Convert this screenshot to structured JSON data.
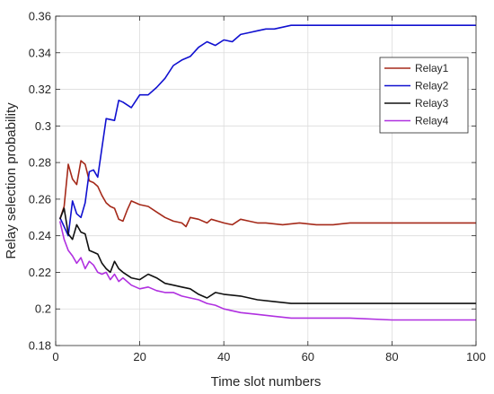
{
  "chart_data": {
    "type": "line",
    "title": "",
    "xlabel": "Time slot numbers",
    "ylabel": "Relay selection probability",
    "xlim": [
      0,
      100
    ],
    "ylim": [
      0.18,
      0.36
    ],
    "xticks": [
      0,
      20,
      40,
      60,
      80,
      100
    ],
    "xtick_labels": [
      "0",
      "20",
      "40",
      "60",
      "80",
      "100"
    ],
    "yticks": [
      0.18,
      0.2,
      0.22,
      0.24,
      0.26,
      0.28,
      0.3,
      0.32,
      0.34,
      0.36
    ],
    "ytick_labels": [
      "0.18",
      "0.2",
      "0.22",
      "0.24",
      "0.26",
      "0.28",
      "0.3",
      "0.32",
      "0.34",
      "0.36"
    ],
    "grid": true,
    "legend_position": "top-right",
    "series": [
      {
        "name": "Relay1",
        "color": "#a52a1a",
        "x": [
          1,
          2,
          3,
          4,
          5,
          6,
          7,
          8,
          9,
          10,
          11,
          12,
          13,
          14,
          15,
          16,
          17,
          18,
          20,
          22,
          24,
          26,
          28,
          30,
          31,
          32,
          34,
          36,
          37,
          40,
          42,
          44,
          46,
          48,
          50,
          54,
          58,
          62,
          66,
          70,
          80,
          90,
          100
        ],
        "y": [
          0.249,
          0.256,
          0.279,
          0.271,
          0.268,
          0.281,
          0.279,
          0.27,
          0.269,
          0.267,
          0.262,
          0.258,
          0.256,
          0.255,
          0.249,
          0.248,
          0.254,
          0.259,
          0.257,
          0.256,
          0.253,
          0.25,
          0.248,
          0.247,
          0.245,
          0.25,
          0.249,
          0.247,
          0.249,
          0.247,
          0.246,
          0.249,
          0.248,
          0.247,
          0.247,
          0.246,
          0.247,
          0.246,
          0.246,
          0.247,
          0.247,
          0.247,
          0.247
        ]
      },
      {
        "name": "Relay2",
        "color": "#1010d0",
        "x": [
          1,
          2,
          3,
          4,
          5,
          6,
          7,
          8,
          9,
          10,
          11,
          12,
          14,
          15,
          16,
          18,
          20,
          22,
          24,
          26,
          28,
          30,
          32,
          34,
          36,
          38,
          40,
          42,
          44,
          46,
          48,
          50,
          52,
          56,
          60,
          70,
          80,
          90,
          100
        ],
        "y": [
          0.25,
          0.245,
          0.24,
          0.259,
          0.252,
          0.25,
          0.258,
          0.275,
          0.276,
          0.272,
          0.288,
          0.304,
          0.303,
          0.314,
          0.313,
          0.31,
          0.317,
          0.317,
          0.321,
          0.326,
          0.333,
          0.336,
          0.338,
          0.343,
          0.346,
          0.344,
          0.347,
          0.346,
          0.35,
          0.351,
          0.352,
          0.353,
          0.353,
          0.355,
          0.355,
          0.355,
          0.355,
          0.355,
          0.355
        ]
      },
      {
        "name": "Relay3",
        "color": "#101010",
        "x": [
          1,
          2,
          3,
          4,
          5,
          6,
          7,
          8,
          9,
          10,
          11,
          12,
          13,
          14,
          15,
          16,
          18,
          20,
          22,
          24,
          26,
          28,
          30,
          32,
          34,
          36,
          38,
          40,
          44,
          48,
          52,
          56,
          60,
          70,
          80,
          90,
          100
        ],
        "y": [
          0.249,
          0.255,
          0.241,
          0.238,
          0.246,
          0.242,
          0.241,
          0.232,
          0.231,
          0.23,
          0.225,
          0.222,
          0.22,
          0.226,
          0.222,
          0.22,
          0.217,
          0.216,
          0.219,
          0.217,
          0.214,
          0.213,
          0.212,
          0.211,
          0.208,
          0.206,
          0.209,
          0.208,
          0.207,
          0.205,
          0.204,
          0.203,
          0.203,
          0.203,
          0.203,
          0.203,
          0.203
        ]
      },
      {
        "name": "Relay4",
        "color": "#b030e0",
        "x": [
          1,
          2,
          3,
          4,
          5,
          6,
          7,
          8,
          9,
          10,
          11,
          12,
          13,
          14,
          15,
          16,
          18,
          20,
          22,
          24,
          26,
          28,
          30,
          32,
          34,
          36,
          38,
          40,
          44,
          48,
          52,
          56,
          60,
          70,
          80,
          90,
          100
        ],
        "y": [
          0.248,
          0.238,
          0.232,
          0.229,
          0.225,
          0.228,
          0.222,
          0.226,
          0.224,
          0.22,
          0.219,
          0.22,
          0.216,
          0.219,
          0.215,
          0.217,
          0.213,
          0.211,
          0.212,
          0.21,
          0.209,
          0.209,
          0.207,
          0.206,
          0.205,
          0.203,
          0.202,
          0.2,
          0.198,
          0.197,
          0.196,
          0.195,
          0.195,
          0.195,
          0.194,
          0.194,
          0.194
        ]
      }
    ]
  }
}
